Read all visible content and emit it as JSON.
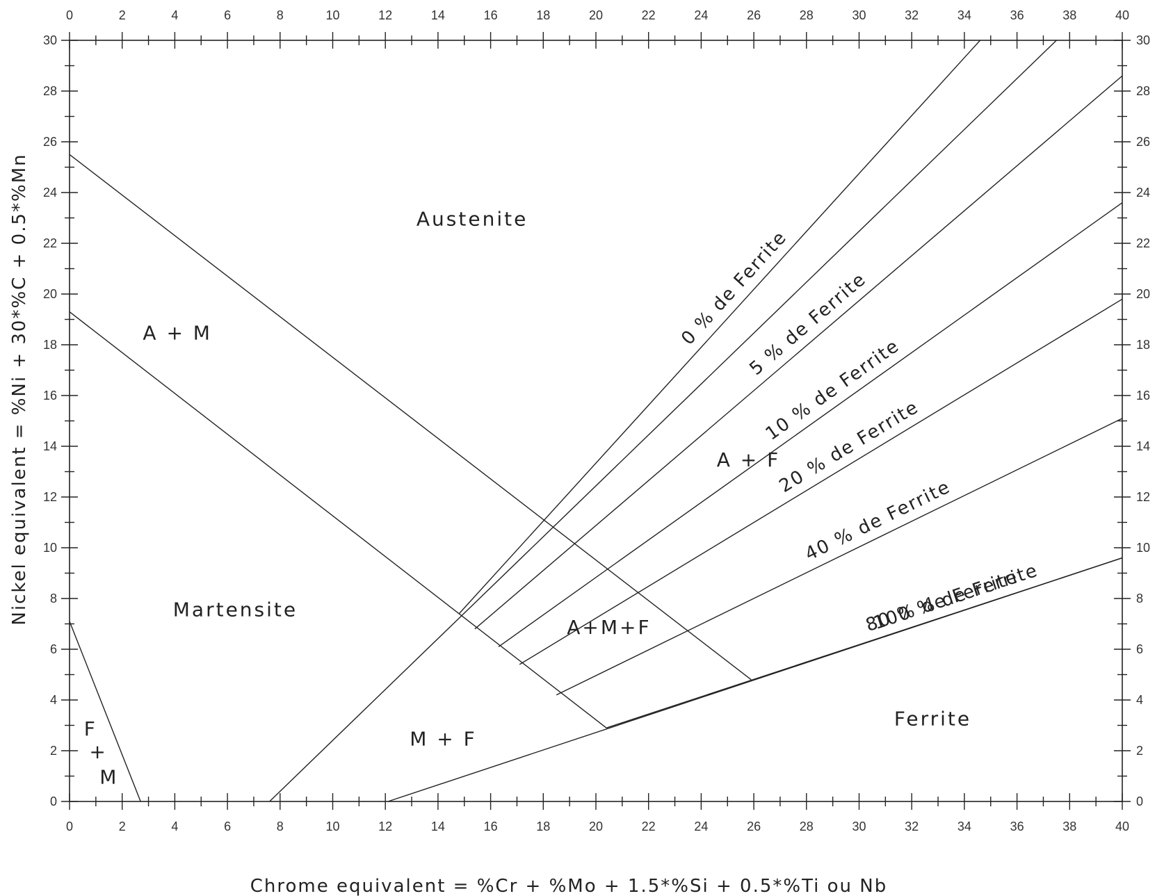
{
  "chart_data": {
    "type": "line",
    "title": "",
    "xlabel": "Chrome equivalent = %Cr + %Mo + 1.5*%Si + 0.5*%Ti ou Nb",
    "ylabel": "Nickel equivalent = %Ni + 30*%C + 0.5*%Mn",
    "xlim": [
      0,
      40
    ],
    "ylim": [
      0,
      30
    ],
    "x_ticks": [
      0,
      2,
      4,
      6,
      8,
      10,
      12,
      14,
      16,
      18,
      20,
      22,
      24,
      26,
      28,
      30,
      32,
      34,
      36,
      38,
      40
    ],
    "y_ticks": [
      0,
      2,
      4,
      6,
      8,
      10,
      12,
      14,
      16,
      18,
      20,
      22,
      24,
      26,
      28,
      30
    ],
    "grid": false,
    "series": [
      {
        "name": "0 % de Ferrite",
        "x": [
          14.8,
          34.6
        ],
        "y": [
          7.4,
          30
        ]
      },
      {
        "name": "5 % de Ferrite",
        "x": [
          15.4,
          40
        ],
        "y": [
          6.8,
          28.6
        ]
      },
      {
        "name": "10 % de Ferrite",
        "x": [
          16.3,
          40
        ],
        "y": [
          6.1,
          23.6
        ]
      },
      {
        "name": "20 % de Ferrite",
        "x": [
          17.1,
          40
        ],
        "y": [
          5.4,
          19.8
        ]
      },
      {
        "name": "40 % de Ferrite",
        "x": [
          18.5,
          40
        ],
        "y": [
          4.2,
          15.1
        ]
      },
      {
        "name": "80 % de Ferrite",
        "x": [
          20.4,
          40
        ],
        "y": [
          2.9,
          9.6
        ]
      },
      {
        "name": "100 % de Ferrite",
        "x": [
          12.1,
          40
        ],
        "y": [
          0,
          9.6
        ]
      }
    ],
    "boundaries": [
      {
        "x": [
          0,
          25.9
        ],
        "y": [
          25.5,
          4.8
        ]
      },
      {
        "x": [
          0,
          20.4
        ],
        "y": [
          19.3,
          2.9
        ]
      },
      {
        "x": [
          7.6,
          37.5
        ],
        "y": [
          0,
          30
        ]
      },
      {
        "x": [
          0,
          2.7
        ],
        "y": [
          7.1,
          0
        ]
      }
    ],
    "annotations": [
      {
        "text": "Austenite",
        "x": 15.3,
        "y": 22.7
      },
      {
        "text": "A + M",
        "x": 4.1,
        "y": 18.2
      },
      {
        "text": "Martensite",
        "x": 6.3,
        "y": 7.3
      },
      {
        "text": "A + F",
        "x": 25.8,
        "y": 13.2
      },
      {
        "text": "A+M+F",
        "x": 20.5,
        "y": 6.6
      },
      {
        "text": "M + F",
        "x": 14.2,
        "y": 2.2
      },
      {
        "text": "Ferrite",
        "x": 32.8,
        "y": 3.0
      },
      {
        "text": "F",
        "x": 0.8,
        "y": 2.6
      },
      {
        "text": "+",
        "x": 1.1,
        "y": 1.7
      },
      {
        "text": "M",
        "x": 1.5,
        "y": 0.7
      }
    ]
  }
}
